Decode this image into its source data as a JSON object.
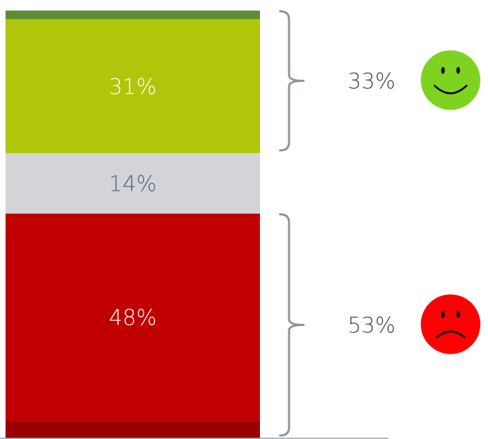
{
  "chart_data": {
    "type": "bar",
    "stacked": true,
    "ylim": [
      0,
      100
    ],
    "segments": [
      {
        "value": 4,
        "label": "",
        "color": "#990000",
        "text_color": "#ffffff"
      },
      {
        "value": 48,
        "label": "48%",
        "color": "#c00000",
        "text_color": "#ffffff"
      },
      {
        "value": 14,
        "label": "14%",
        "color": "#d2d4d8",
        "text_color": "#5a6472"
      },
      {
        "value": 31,
        "label": "31%",
        "color": "#b0c60a",
        "text_color": "#ffffff"
      },
      {
        "value": 2,
        "label": "",
        "color": "#5e8c31",
        "text_color": "#ffffff"
      }
    ],
    "groups": [
      {
        "label": "33%",
        "segments": [
          3,
          4
        ],
        "icon": "happy-face-icon",
        "icon_color": "#7ed321"
      },
      {
        "label": "53%",
        "segments": [
          0,
          1
        ],
        "icon": "sad-face-icon",
        "icon_color": "#ff0000"
      }
    ]
  }
}
